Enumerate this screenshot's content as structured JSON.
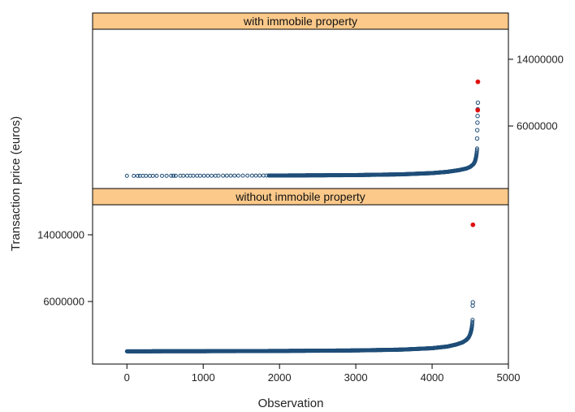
{
  "chart_data": {
    "type": "scatter",
    "layout": "two stacked panels with shared x axis",
    "xlabel": "Observation",
    "ylabel": "Transaction price (euros)",
    "xlim": [
      -450,
      5000
    ],
    "x_ticks": [
      0,
      1000,
      2000,
      3000,
      4000,
      5000
    ],
    "x_tick_labels": [
      "0",
      "1000",
      "2000",
      "3000",
      "4000",
      "5000"
    ],
    "ylim": [
      -1500000,
      17600000
    ],
    "y_ticks": [
      6000000,
      14000000
    ],
    "y_tick_labels": [
      "6000000",
      "14000000"
    ],
    "grid": false,
    "colors": {
      "strip": "#fcc98a",
      "points": "#1f4e79",
      "highlight": "#e01010",
      "frame": "#000000"
    },
    "panels": [
      {
        "strip_label": "with immobile property",
        "y_axis_side": "right",
        "n_obs": 4600,
        "curve": [
          [
            0,
            20000
          ],
          [
            300,
            25000
          ],
          [
            1000,
            35000
          ],
          [
            2000,
            60000
          ],
          [
            3000,
            110000
          ],
          [
            3600,
            200000
          ],
          [
            4000,
            350000
          ],
          [
            4200,
            500000
          ],
          [
            4350,
            700000
          ],
          [
            4450,
            900000
          ],
          [
            4500,
            1100000
          ],
          [
            4540,
            1400000
          ],
          [
            4560,
            1700000
          ],
          [
            4575,
            2200000
          ],
          [
            4585,
            2800000
          ],
          [
            4590,
            3300000
          ]
        ],
        "sparse_left": [
          0,
          90,
          140,
          170,
          210,
          250,
          300,
          340,
          390,
          460,
          520,
          580,
          610,
          640,
          700,
          740,
          790,
          830,
          870,
          920,
          960,
          1010,
          1060,
          1110,
          1160,
          1200,
          1260,
          1310,
          1360,
          1410,
          1460,
          1520,
          1580,
          1640,
          1690,
          1740,
          1790,
          1830
        ],
        "outliers": [
          {
            "x": 4590,
            "y": 4500000
          },
          {
            "x": 4592,
            "y": 5500000
          },
          {
            "x": 4594,
            "y": 6400000
          },
          {
            "x": 4596,
            "y": 7200000
          },
          {
            "x": 4598,
            "y": 8000000
          },
          {
            "x": 4600,
            "y": 8800000
          }
        ],
        "highlighted": [
          {
            "x": 4598,
            "y": 7900000
          },
          {
            "x": 4600,
            "y": 11300000
          }
        ]
      },
      {
        "strip_label": "without immobile property",
        "y_axis_side": "left",
        "n_obs": 4540,
        "curve": [
          [
            0,
            20000
          ],
          [
            300,
            28000
          ],
          [
            1000,
            40000
          ],
          [
            2000,
            70000
          ],
          [
            3000,
            130000
          ],
          [
            3600,
            230000
          ],
          [
            4000,
            400000
          ],
          [
            4200,
            600000
          ],
          [
            4320,
            850000
          ],
          [
            4400,
            1100000
          ],
          [
            4450,
            1400000
          ],
          [
            4480,
            1700000
          ],
          [
            4500,
            2100000
          ],
          [
            4515,
            2600000
          ],
          [
            4525,
            3200000
          ],
          [
            4530,
            3800000
          ]
        ],
        "sparse_left": [],
        "outliers": [
          {
            "x": 4532,
            "y": 5500000
          },
          {
            "x": 4534,
            "y": 5900000
          }
        ],
        "highlighted": [
          {
            "x": 4535,
            "y": 15200000
          }
        ]
      }
    ]
  }
}
